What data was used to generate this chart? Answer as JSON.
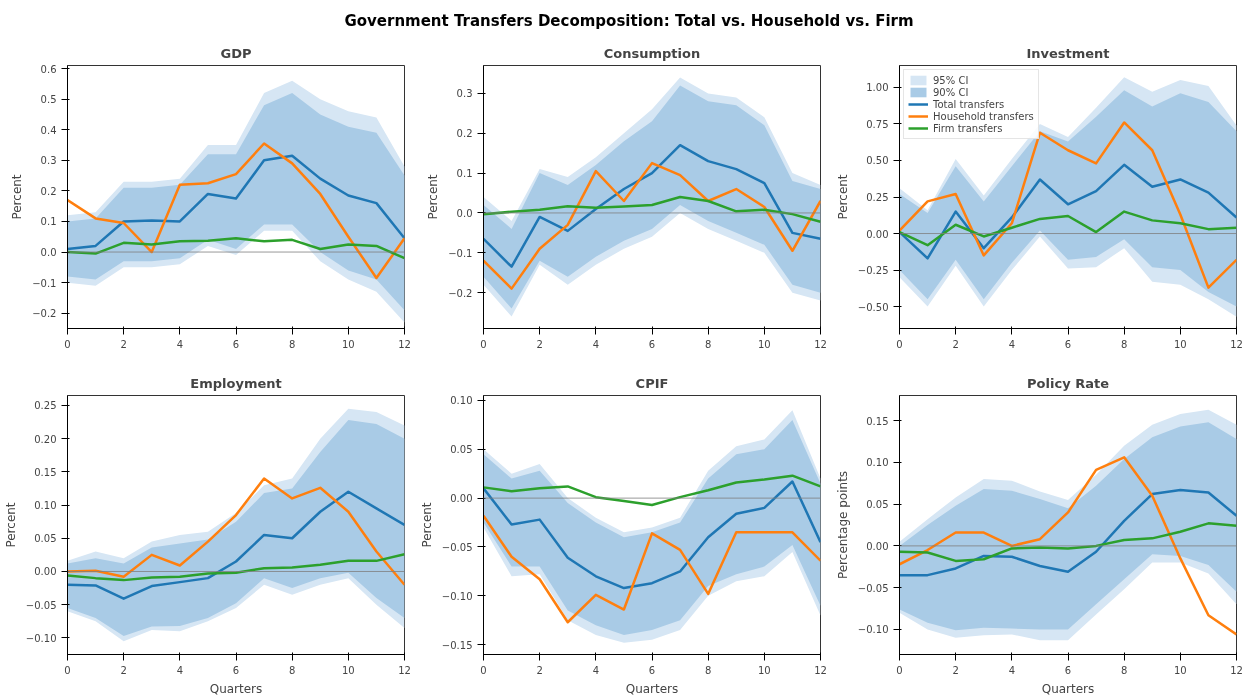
{
  "chart_data": [
    {
      "type": "line",
      "title": "GDP",
      "ylabel": "Percent",
      "annotations": [
        "Government Transfers Decomposition: Total vs. Household vs. Firm"
      ],
      "x": [
        0,
        1,
        2,
        3,
        4,
        5,
        6,
        7,
        8,
        9,
        10,
        11,
        12
      ],
      "xlim": [
        0,
        12
      ],
      "xticks": [
        0,
        2,
        4,
        6,
        8,
        10,
        12
      ],
      "ylim": [
        -0.25,
        0.61
      ],
      "yticks": [
        {
          "value": -0.2,
          "label": "−0.2"
        },
        {
          "value": -0.1,
          "label": "−0.1"
        },
        {
          "value": 0,
          "label": "0.0"
        },
        {
          "value": 0.1,
          "label": "0.1"
        },
        {
          "value": 0.2,
          "label": "0.2"
        },
        {
          "value": 0.3,
          "label": "0.3"
        },
        {
          "value": 0.4,
          "label": "0.4"
        },
        {
          "value": 0.5,
          "label": "0.5"
        },
        {
          "value": 0.6,
          "label": "0.6"
        }
      ],
      "ref_lines": [
        {
          "axis": "y",
          "value": 0,
          "color": "#808080"
        }
      ],
      "series": [
        {
          "color": "#d6e6f4",
          "values": [
            null,
            null,
            null,
            null,
            null,
            null,
            null,
            null,
            null,
            null,
            null,
            null,
            null
          ],
          "lower": [
            -0.1,
            -0.11,
            -0.05,
            -0.05,
            -0.04,
            0.02,
            -0.01,
            0.07,
            0.07,
            -0.03,
            -0.09,
            -0.13,
            -0.23
          ],
          "upper": [
            0.12,
            0.13,
            0.23,
            0.23,
            0.24,
            0.35,
            0.35,
            0.52,
            0.56,
            0.5,
            0.46,
            0.44,
            0.28
          ]
        },
        {
          "color": "#a9cbe6",
          "values": [
            null,
            null,
            null,
            null,
            null,
            null,
            null,
            null,
            null,
            null,
            null,
            null,
            null
          ],
          "lower": [
            -0.08,
            -0.09,
            -0.03,
            -0.03,
            -0.02,
            0.04,
            0.01,
            0.09,
            0.09,
            0.0,
            -0.06,
            -0.09,
            -0.19
          ],
          "upper": [
            0.1,
            0.11,
            0.21,
            0.21,
            0.22,
            0.32,
            0.32,
            0.48,
            0.52,
            0.45,
            0.41,
            0.39,
            0.25
          ]
        },
        {
          "color": "#1f77b4",
          "values": [
            0.01,
            0.02,
            0.1,
            0.103,
            0.1,
            0.19,
            0.175,
            0.3,
            0.315,
            0.24,
            0.185,
            0.16,
            0.045
          ]
        },
        {
          "color": "#ff7f0e",
          "values": [
            0.17,
            0.11,
            0.095,
            0.0,
            0.22,
            0.225,
            0.255,
            0.355,
            0.29,
            0.19,
            0.05,
            -0.085,
            0.045
          ]
        },
        {
          "color": "#2ca02c",
          "values": [
            0.0,
            -0.005,
            0.03,
            0.025,
            0.035,
            0.037,
            0.045,
            0.035,
            0.04,
            0.01,
            0.025,
            0.02,
            -0.02
          ]
        }
      ]
    },
    {
      "type": "line",
      "title": "Consumption",
      "ylabel": "Percent",
      "x": [
        0,
        1,
        2,
        3,
        4,
        5,
        6,
        7,
        8,
        9,
        10,
        11,
        12
      ],
      "xlim": [
        0,
        12
      ],
      "xticks": [
        0,
        2,
        4,
        6,
        8,
        10,
        12
      ],
      "ylim": [
        -0.29,
        0.37
      ],
      "yticks": [
        {
          "value": -0.2,
          "label": "−0.2"
        },
        {
          "value": -0.1,
          "label": "−0.1"
        },
        {
          "value": 0,
          "label": "0.0"
        },
        {
          "value": 0.1,
          "label": "0.1"
        },
        {
          "value": 0.2,
          "label": "0.2"
        },
        {
          "value": 0.3,
          "label": "0.3"
        }
      ],
      "ref_lines": [
        {
          "axis": "y",
          "value": 0,
          "color": "#808080"
        }
      ],
      "series": [
        {
          "color": "#d6e6f4",
          "values": [
            null,
            null,
            null,
            null,
            null,
            null,
            null,
            null,
            null,
            null,
            null,
            null,
            null
          ],
          "lower": [
            -0.18,
            -0.26,
            -0.13,
            -0.18,
            -0.13,
            -0.09,
            -0.06,
            0.0,
            -0.04,
            -0.07,
            -0.1,
            -0.2,
            -0.22
          ],
          "upper": [
            0.04,
            -0.02,
            0.11,
            0.09,
            0.14,
            0.2,
            0.26,
            0.34,
            0.3,
            0.29,
            0.24,
            0.1,
            0.07
          ]
        },
        {
          "color": "#a9cbe6",
          "values": [
            null,
            null,
            null,
            null,
            null,
            null,
            null,
            null,
            null,
            null,
            null,
            null,
            null
          ],
          "lower": [
            -0.16,
            -0.24,
            -0.12,
            -0.16,
            -0.11,
            -0.07,
            -0.04,
            0.02,
            -0.02,
            -0.05,
            -0.08,
            -0.18,
            -0.2
          ],
          "upper": [
            0.02,
            -0.04,
            0.1,
            0.07,
            0.12,
            0.18,
            0.23,
            0.32,
            0.28,
            0.27,
            0.22,
            0.08,
            0.06
          ]
        },
        {
          "color": "#1f77b4",
          "values": [
            -0.065,
            -0.135,
            -0.01,
            -0.045,
            0.01,
            0.06,
            0.1,
            0.17,
            0.13,
            0.11,
            0.075,
            -0.05,
            -0.065
          ]
        },
        {
          "color": "#ff7f0e",
          "values": [
            -0.12,
            -0.19,
            -0.09,
            -0.03,
            0.105,
            0.03,
            0.125,
            0.095,
            0.03,
            0.06,
            0.015,
            -0.095,
            0.03
          ]
        },
        {
          "color": "#2ca02c",
          "values": [
            -0.003,
            0.003,
            0.008,
            0.017,
            0.013,
            0.016,
            0.02,
            0.04,
            0.03,
            0.004,
            0.008,
            -0.003,
            -0.022
          ]
        }
      ]
    },
    {
      "type": "line",
      "title": "Investment",
      "ylabel": "Percent",
      "legend": "top left",
      "x": [
        0,
        1,
        2,
        3,
        4,
        5,
        6,
        7,
        8,
        9,
        10,
        11,
        12
      ],
      "xlim": [
        0,
        12
      ],
      "xticks": [
        0,
        2,
        4,
        6,
        8,
        10,
        12
      ],
      "ylim": [
        -0.65,
        1.15
      ],
      "yticks": [
        {
          "value": -0.5,
          "label": "−0.50"
        },
        {
          "value": -0.25,
          "label": "−0.25"
        },
        {
          "value": 0,
          "label": "0.00"
        },
        {
          "value": 0.25,
          "label": "0.25"
        },
        {
          "value": 0.5,
          "label": "0.50"
        },
        {
          "value": 0.75,
          "label": "0.75"
        },
        {
          "value": 1.0,
          "label": "1.00"
        }
      ],
      "ref_lines": [
        {
          "axis": "y",
          "value": 0,
          "color": "#808080"
        }
      ],
      "series": [
        {
          "name": "95% CI",
          "color": "#d6e6f4",
          "values": [
            null,
            null,
            null,
            null,
            null,
            null,
            null,
            null,
            null,
            null,
            null,
            null,
            null
          ],
          "lower": [
            -0.3,
            -0.5,
            -0.22,
            -0.5,
            -0.25,
            -0.02,
            -0.24,
            -0.23,
            -0.1,
            -0.33,
            -0.35,
            -0.45,
            -0.57
          ],
          "upper": [
            0.31,
            0.16,
            0.51,
            0.26,
            0.51,
            0.75,
            0.66,
            0.86,
            1.07,
            0.97,
            1.05,
            1.01,
            0.74
          ]
        },
        {
          "name": "90% CI",
          "color": "#a9cbe6",
          "values": [
            null,
            null,
            null,
            null,
            null,
            null,
            null,
            null,
            null,
            null,
            null,
            null,
            null
          ],
          "lower": [
            -0.25,
            -0.45,
            -0.18,
            -0.45,
            -0.2,
            0.02,
            -0.18,
            -0.16,
            -0.04,
            -0.23,
            -0.25,
            -0.4,
            -0.5
          ],
          "upper": [
            0.27,
            0.14,
            0.46,
            0.22,
            0.46,
            0.7,
            0.63,
            0.8,
            0.98,
            0.87,
            0.96,
            0.9,
            0.7
          ]
        },
        {
          "name": "Total transfers",
          "color": "#1f77b4",
          "values": [
            0.01,
            -0.17,
            0.15,
            -0.1,
            0.11,
            0.37,
            0.2,
            0.29,
            0.47,
            0.32,
            0.37,
            0.28,
            0.11
          ]
        },
        {
          "name": "Household transfers",
          "color": "#ff7f0e",
          "values": [
            0.02,
            0.22,
            0.27,
            -0.15,
            0.07,
            0.69,
            0.57,
            0.48,
            0.76,
            0.57,
            0.13,
            -0.37,
            -0.18
          ]
        },
        {
          "name": "Firm transfers",
          "color": "#2ca02c",
          "values": [
            0.01,
            -0.08,
            0.06,
            -0.02,
            0.04,
            0.1,
            0.12,
            0.01,
            0.15,
            0.09,
            0.07,
            0.03,
            0.04
          ]
        }
      ]
    },
    {
      "type": "line",
      "title": "Employment",
      "xlabel": "Quarters",
      "ylabel": "Percent",
      "x": [
        0,
        1,
        2,
        3,
        4,
        5,
        6,
        7,
        8,
        9,
        10,
        11,
        12
      ],
      "xlim": [
        0,
        12
      ],
      "xticks": [
        0,
        2,
        4,
        6,
        8,
        10,
        12
      ],
      "ylim": [
        -0.125,
        0.265
      ],
      "yticks": [
        {
          "value": -0.1,
          "label": "−0.10"
        },
        {
          "value": -0.05,
          "label": "−0.05"
        },
        {
          "value": 0,
          "label": "0.00"
        },
        {
          "value": 0.05,
          "label": "0.05"
        },
        {
          "value": 0.1,
          "label": "0.10"
        },
        {
          "value": 0.15,
          "label": "0.15"
        },
        {
          "value": 0.2,
          "label": "0.20"
        },
        {
          "value": 0.25,
          "label": "0.25"
        }
      ],
      "ref_lines": [
        {
          "axis": "y",
          "value": 0,
          "color": "#808080"
        }
      ],
      "series": [
        {
          "color": "#d6e6f4",
          "values": [
            null,
            null,
            null,
            null,
            null,
            null,
            null,
            null,
            null,
            null,
            null,
            null,
            null
          ],
          "lower": [
            -0.06,
            -0.075,
            -0.105,
            -0.088,
            -0.09,
            -0.075,
            -0.055,
            -0.02,
            -0.035,
            -0.02,
            -0.01,
            -0.05,
            -0.085
          ],
          "upper": [
            0.016,
            0.03,
            0.02,
            0.045,
            0.055,
            0.06,
            0.088,
            0.13,
            0.14,
            0.2,
            0.245,
            0.24,
            0.22
          ]
        },
        {
          "color": "#a9cbe6",
          "values": [
            null,
            null,
            null,
            null,
            null,
            null,
            null,
            null,
            null,
            null,
            null,
            null,
            null
          ],
          "lower": [
            -0.055,
            -0.07,
            -0.097,
            -0.083,
            -0.082,
            -0.07,
            -0.048,
            -0.01,
            -0.025,
            -0.01,
            -0.002,
            -0.04,
            -0.07
          ],
          "upper": [
            0.012,
            0.02,
            0.012,
            0.036,
            0.042,
            0.048,
            0.075,
            0.118,
            0.125,
            0.18,
            0.228,
            0.222,
            0.2
          ]
        },
        {
          "color": "#1f77b4",
          "values": [
            -0.02,
            -0.021,
            -0.041,
            -0.022,
            -0.016,
            -0.01,
            0.015,
            0.055,
            0.05,
            0.09,
            0.12,
            0.095,
            0.07
          ]
        },
        {
          "color": "#ff7f0e",
          "values": [
            0.0,
            0.001,
            -0.008,
            0.025,
            0.009,
            0.045,
            0.085,
            0.14,
            0.11,
            0.126,
            0.09,
            0.03,
            -0.02
          ]
        },
        {
          "color": "#2ca02c",
          "values": [
            -0.006,
            -0.01,
            -0.013,
            -0.009,
            -0.008,
            -0.003,
            -0.002,
            0.005,
            0.006,
            0.01,
            0.016,
            0.016,
            0.026
          ]
        }
      ]
    },
    {
      "type": "line",
      "title": "CPIF",
      "xlabel": "Quarters",
      "ylabel": "Percent",
      "x": [
        0,
        1,
        2,
        3,
        4,
        5,
        6,
        7,
        8,
        9,
        10,
        11,
        12
      ],
      "xlim": [
        0,
        12
      ],
      "xticks": [
        0,
        2,
        4,
        6,
        8,
        10,
        12
      ],
      "ylim": [
        -0.16,
        0.105
      ],
      "yticks": [
        {
          "value": -0.15,
          "label": "−0.15"
        },
        {
          "value": -0.1,
          "label": "−0.10"
        },
        {
          "value": -0.05,
          "label": "−0.05"
        },
        {
          "value": 0,
          "label": "0.00"
        },
        {
          "value": 0.05,
          "label": "0.05"
        },
        {
          "value": 0.1,
          "label": "0.10"
        }
      ],
      "ref_lines": [
        {
          "axis": "y",
          "value": 0,
          "color": "#808080"
        }
      ],
      "series": [
        {
          "color": "#d6e6f4",
          "values": [
            null,
            null,
            null,
            null,
            null,
            null,
            null,
            null,
            null,
            null,
            null,
            null,
            null
          ],
          "lower": [
            -0.03,
            -0.08,
            -0.078,
            -0.125,
            -0.14,
            -0.148,
            -0.145,
            -0.135,
            -0.1,
            -0.085,
            -0.08,
            -0.055,
            -0.12
          ],
          "upper": [
            0.05,
            0.025,
            0.035,
            0.0,
            -0.02,
            -0.035,
            -0.03,
            -0.02,
            0.028,
            0.053,
            0.06,
            0.09,
            0.02
          ]
        },
        {
          "color": "#a9cbe6",
          "values": [
            null,
            null,
            null,
            null,
            null,
            null,
            null,
            null,
            null,
            null,
            null,
            null,
            null
          ],
          "lower": [
            -0.025,
            -0.07,
            -0.07,
            -0.115,
            -0.13,
            -0.14,
            -0.135,
            -0.125,
            -0.09,
            -0.078,
            -0.07,
            -0.048,
            -0.11
          ],
          "upper": [
            0.045,
            0.02,
            0.028,
            -0.005,
            -0.025,
            -0.04,
            -0.035,
            -0.025,
            0.02,
            0.045,
            0.05,
            0.08,
            0.015
          ]
        },
        {
          "color": "#1f77b4",
          "values": [
            0.01,
            -0.027,
            -0.022,
            -0.061,
            -0.08,
            -0.092,
            -0.087,
            -0.075,
            -0.04,
            -0.016,
            -0.01,
            0.017,
            -0.045
          ]
        },
        {
          "color": "#ff7f0e",
          "values": [
            -0.018,
            -0.06,
            -0.083,
            -0.127,
            -0.099,
            -0.114,
            -0.036,
            -0.053,
            -0.098,
            -0.035,
            -0.035,
            -0.035,
            -0.064
          ]
        },
        {
          "color": "#2ca02c",
          "values": [
            0.011,
            0.007,
            0.01,
            0.012,
            0.001,
            -0.003,
            -0.007,
            0.001,
            0.008,
            0.016,
            0.019,
            0.023,
            0.012
          ]
        }
      ]
    },
    {
      "type": "line",
      "title": "Policy Rate",
      "xlabel": "Quarters",
      "ylabel": "Percentage points",
      "x": [
        0,
        1,
        2,
        3,
        4,
        5,
        6,
        7,
        8,
        9,
        10,
        11,
        12
      ],
      "xlim": [
        0,
        12
      ],
      "xticks": [
        0,
        2,
        4,
        6,
        8,
        10,
        12
      ],
      "ylim": [
        -0.13,
        0.18
      ],
      "yticks": [
        {
          "value": -0.1,
          "label": "−0.10"
        },
        {
          "value": -0.05,
          "label": "−0.05"
        },
        {
          "value": 0,
          "label": "0.00"
        },
        {
          "value": 0.05,
          "label": "0.05"
        },
        {
          "value": 0.1,
          "label": "0.10"
        },
        {
          "value": 0.15,
          "label": "0.15"
        }
      ],
      "ref_lines": [
        {
          "axis": "y",
          "value": 0,
          "color": "#808080"
        }
      ],
      "series": [
        {
          "color": "#d6e6f4",
          "values": [
            null,
            null,
            null,
            null,
            null,
            null,
            null,
            null,
            null,
            null,
            null,
            null,
            null
          ],
          "lower": [
            -0.08,
            -0.1,
            -0.11,
            -0.107,
            -0.106,
            -0.113,
            -0.113,
            -0.082,
            -0.052,
            -0.02,
            -0.02,
            -0.033,
            -0.07
          ],
          "upper": [
            0.005,
            0.032,
            0.058,
            0.08,
            0.078,
            0.065,
            0.055,
            0.085,
            0.12,
            0.145,
            0.158,
            0.163,
            0.145
          ]
        },
        {
          "color": "#a9cbe6",
          "values": [
            null,
            null,
            null,
            null,
            null,
            null,
            null,
            null,
            null,
            null,
            null,
            null,
            null
          ],
          "lower": [
            -0.076,
            -0.092,
            -0.101,
            -0.098,
            -0.099,
            -0.1,
            -0.1,
            -0.07,
            -0.04,
            -0.01,
            -0.012,
            -0.023,
            -0.055
          ],
          "upper": [
            0.0,
            0.025,
            0.048,
            0.068,
            0.066,
            0.056,
            0.045,
            0.072,
            0.104,
            0.13,
            0.143,
            0.148,
            0.128
          ]
        },
        {
          "color": "#1f77b4",
          "values": [
            -0.035,
            -0.035,
            -0.027,
            -0.012,
            -0.013,
            -0.024,
            -0.031,
            -0.007,
            0.03,
            0.062,
            0.067,
            0.064,
            0.036
          ]
        },
        {
          "color": "#ff7f0e",
          "values": [
            -0.022,
            -0.005,
            0.016,
            0.016,
            0.0,
            0.008,
            0.04,
            0.091,
            0.106,
            0.06,
            -0.015,
            -0.083,
            -0.106
          ]
        },
        {
          "color": "#2ca02c",
          "values": [
            -0.007,
            -0.008,
            -0.018,
            -0.016,
            -0.003,
            -0.002,
            -0.003,
            0.0,
            0.007,
            0.009,
            0.017,
            0.027,
            0.024
          ]
        }
      ]
    }
  ]
}
